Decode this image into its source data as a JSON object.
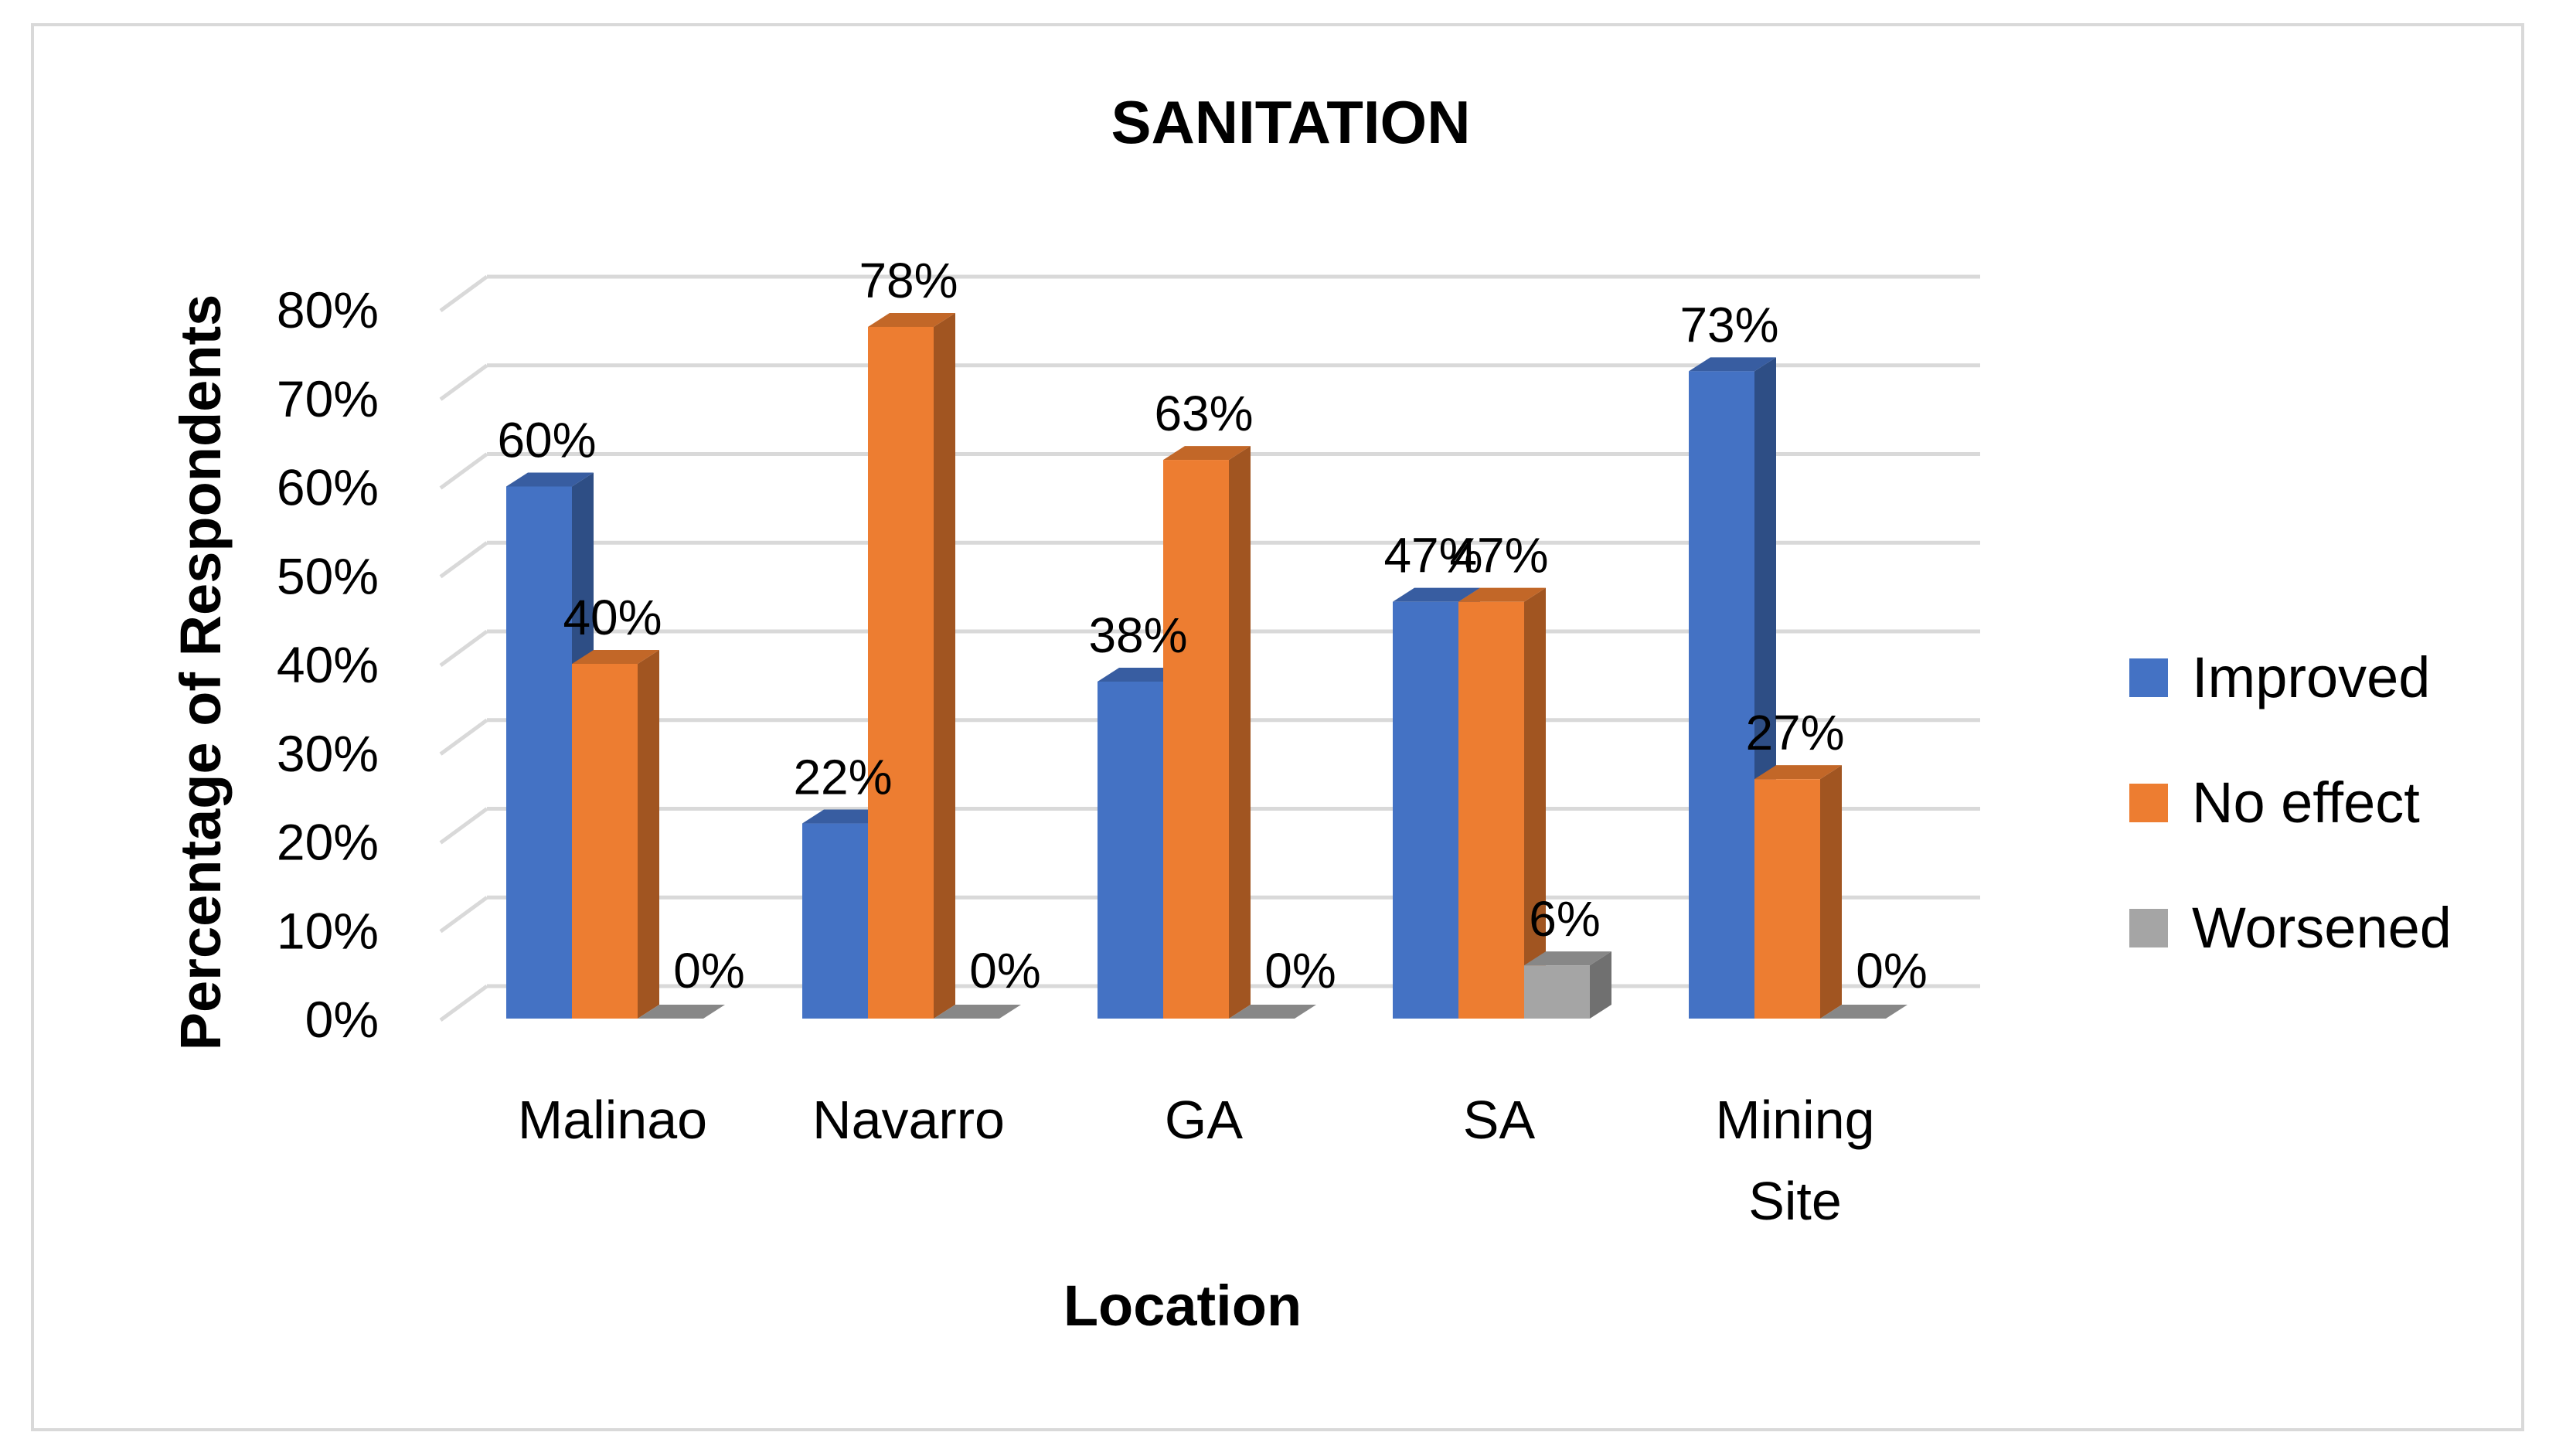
{
  "chart_data": {
    "type": "bar",
    "title": "SANITATION",
    "xlabel": "Location",
    "ylabel": "Percentage of Respondents",
    "ylim": [
      0,
      80
    ],
    "yticks": [
      "0%",
      "10%",
      "20%",
      "30%",
      "40%",
      "50%",
      "60%",
      "70%",
      "80%"
    ],
    "categories": [
      "Malinao",
      "Navarro",
      "GA",
      "SA",
      "Mining Site"
    ],
    "series": [
      {
        "name": "Improved",
        "color": "#4472c4",
        "values": [
          60,
          22,
          38,
          47,
          73
        ],
        "labels": [
          "60%",
          "22%",
          "38%",
          "47%",
          "73%"
        ]
      },
      {
        "name": "No effect",
        "color": "#ed7d31",
        "values": [
          40,
          78,
          63,
          47,
          27
        ],
        "labels": [
          "40%",
          "78%",
          "63%",
          "47%",
          "27%"
        ]
      },
      {
        "name": "Worsened",
        "color": "#a5a5a5",
        "values": [
          0,
          0,
          0,
          6,
          0
        ],
        "labels": [
          "0%",
          "0%",
          "0%",
          "6%",
          "0%"
        ]
      }
    ],
    "legend_position": "right",
    "grid": true
  }
}
